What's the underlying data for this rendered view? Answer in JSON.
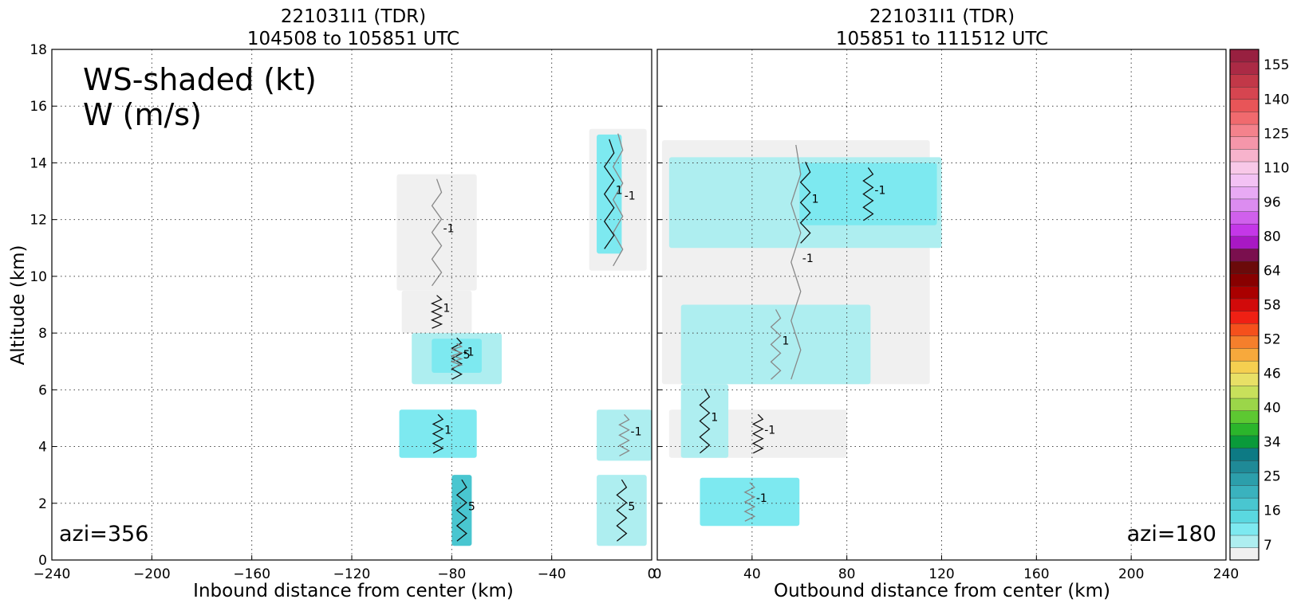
{
  "chart_data": [
    {
      "type": "heatmap",
      "title": "221031I1 (TDR)",
      "subtitle": "104508 to 105851 UTC",
      "xlabel": "Inbound distance from center (km)",
      "ylabel": "Altitude (km)",
      "xlim": [
        -240,
        0
      ],
      "ylim": [
        0,
        18
      ],
      "xticks": [
        "−240",
        "−200",
        "−160",
        "−120",
        "−80",
        "−40",
        "0"
      ],
      "yticks": [
        "0",
        "2",
        "4",
        "6",
        "8",
        "10",
        "12",
        "14",
        "16",
        "18"
      ],
      "grid": true,
      "annotation_line1": "WS-shaded (kt)",
      "annotation_line2": "W (m/s)",
      "azimuth_label": "azi=356",
      "contour_labels": [
        "-1",
        "1",
        "5"
      ],
      "shaded_regions": [
        {
          "level": 7,
          "x": [
            -102,
            -70
          ],
          "y": [
            9.5,
            13.6
          ]
        },
        {
          "level": 7,
          "x": [
            -100,
            -72
          ],
          "y": [
            8,
            9.5
          ]
        },
        {
          "level": 11,
          "x": [
            -96,
            -60
          ],
          "y": [
            6.2,
            8.0
          ]
        },
        {
          "level": 16,
          "x": [
            -88,
            -68
          ],
          "y": [
            6.6,
            7.8
          ]
        },
        {
          "level": 16,
          "x": [
            -101,
            -70
          ],
          "y": [
            3.6,
            5.3
          ]
        },
        {
          "level": 20,
          "x": [
            -80,
            -72
          ],
          "y": [
            0.5,
            3
          ]
        },
        {
          "level": 7,
          "x": [
            -25,
            -2
          ],
          "y": [
            10.2,
            15.2
          ]
        },
        {
          "level": 16,
          "x": [
            -22,
            -12
          ],
          "y": [
            10.8,
            15
          ]
        },
        {
          "level": 11,
          "x": [
            -22,
            -2
          ],
          "y": [
            0.5,
            3
          ]
        },
        {
          "level": 11,
          "x": [
            -22,
            0
          ],
          "y": [
            3.5,
            5.3
          ]
        }
      ]
    },
    {
      "type": "heatmap",
      "title": "221031I1 (TDR)",
      "subtitle": "105851 to 111512 UTC",
      "xlabel": "Outbound distance from center (km)",
      "ylabel": "",
      "xlim": [
        0,
        240
      ],
      "ylim": [
        0,
        18
      ],
      "xticks": [
        "0",
        "40",
        "80",
        "120",
        "160",
        "200",
        "240"
      ],
      "grid": true,
      "azimuth_label": "azi=180",
      "contour_labels": [
        "-1",
        "1"
      ],
      "shaded_regions": [
        {
          "level": 7,
          "x": [
            2,
            115
          ],
          "y": [
            6.2,
            14.8
          ]
        },
        {
          "level": 11,
          "x": [
            5,
            120
          ],
          "y": [
            11,
            14.2
          ]
        },
        {
          "level": 16,
          "x": [
            60,
            118
          ],
          "y": [
            11.8,
            14
          ]
        },
        {
          "level": 11,
          "x": [
            10,
            90
          ],
          "y": [
            6.2,
            9
          ]
        },
        {
          "level": 7,
          "x": [
            5,
            80
          ],
          "y": [
            3.6,
            5.3
          ]
        },
        {
          "level": 11,
          "x": [
            10,
            30
          ],
          "y": [
            3.6,
            6.2
          ]
        },
        {
          "level": 16,
          "x": [
            18,
            60
          ],
          "y": [
            1.2,
            2.9
          ]
        }
      ]
    },
    {
      "type": "colorbar",
      "tick_labels": [
        "155",
        "140",
        "125",
        "110",
        "96",
        "80",
        "64",
        "58",
        "52",
        "46",
        "40",
        "34",
        "25",
        "16",
        "7"
      ],
      "colors": [
        "#f0f0f0",
        "#aeeef0",
        "#7de9f0",
        "#5ad8e0",
        "#49c6d0",
        "#3ab2be",
        "#2c9fab",
        "#1f8a97",
        "#0d7a84",
        "#0a9a3a",
        "#2bb52b",
        "#5dc832",
        "#9bd649",
        "#c8e05b",
        "#e8e066",
        "#f5cf50",
        "#f7a93c",
        "#f57f2c",
        "#f5501c",
        "#ef2014",
        "#d20a0a",
        "#aa0000",
        "#880000",
        "#6b0a0a",
        "#7a0f4e",
        "#a818c4",
        "#c437e8",
        "#d060ec",
        "#dc8cf0",
        "#e8aaf4",
        "#f3c2f4",
        "#f8c8e8",
        "#f7b3cc",
        "#f596aa",
        "#f4828c",
        "#f06a6e",
        "#e85558",
        "#d64550",
        "#c23848",
        "#ab2a45",
        "#982040"
      ]
    }
  ]
}
